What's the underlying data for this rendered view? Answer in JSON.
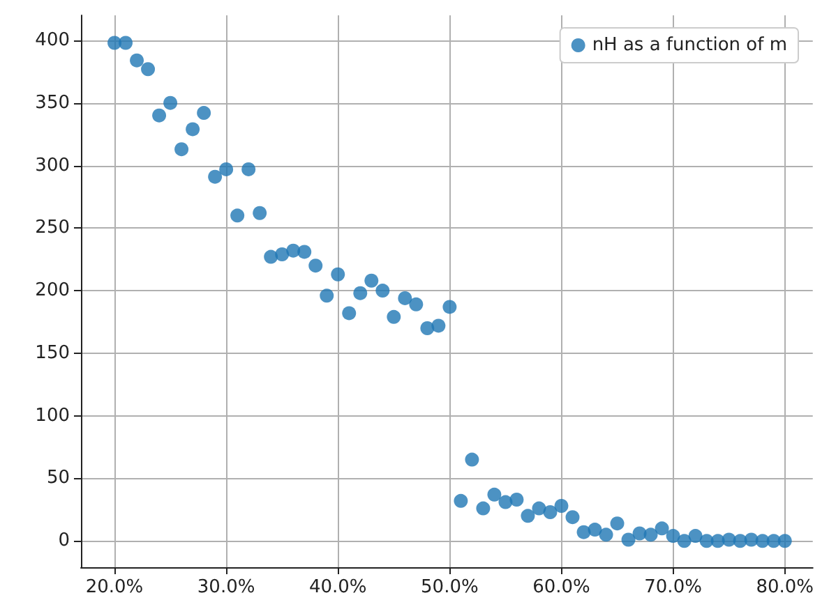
{
  "chart_data": {
    "type": "scatter",
    "x": [
      20,
      21,
      22,
      23,
      24,
      25,
      26,
      27,
      28,
      29,
      30,
      31,
      32,
      33,
      34,
      35,
      36,
      37,
      38,
      39,
      40,
      41,
      42,
      43,
      44,
      45,
      46,
      47,
      48,
      49,
      50,
      51,
      52,
      53,
      54,
      55,
      56,
      57,
      58,
      59,
      60,
      61,
      62,
      63,
      64,
      65,
      66,
      67,
      68,
      69,
      70,
      71,
      72,
      73,
      74,
      75,
      76,
      77,
      78,
      79,
      80
    ],
    "series": [
      {
        "name": "nH as a function of m",
        "color": "#1f77b4",
        "values": [
          398,
          398,
          384,
          377,
          340,
          350,
          313,
          329,
          342,
          291,
          297,
          260,
          297,
          262,
          227,
          229,
          232,
          231,
          220,
          196,
          213,
          182,
          198,
          208,
          200,
          179,
          194,
          189,
          170,
          172,
          187,
          32,
          65,
          26,
          37,
          31,
          33,
          20,
          26,
          23,
          28,
          19,
          7,
          9,
          5,
          14,
          1,
          6,
          5,
          10,
          4,
          0,
          4,
          0,
          0,
          1,
          0,
          1,
          0,
          0,
          0
        ]
      }
    ],
    "xlim": [
      17,
      82.5
    ],
    "xticks": [
      {
        "value": 20,
        "label": "20.0%"
      },
      {
        "value": 30,
        "label": "30.0%"
      },
      {
        "value": 40,
        "label": "40.0%"
      },
      {
        "value": 50,
        "label": "50.0%"
      },
      {
        "value": 60,
        "label": "60.0%"
      },
      {
        "value": 70,
        "label": "70.0%"
      },
      {
        "value": 80,
        "label": "80.0%"
      }
    ],
    "ylim": [
      -21,
      420
    ],
    "yticks": [
      0,
      50,
      100,
      150,
      200,
      250,
      300,
      350,
      400
    ],
    "grid": true,
    "legend": "top right",
    "marker": "circle"
  }
}
